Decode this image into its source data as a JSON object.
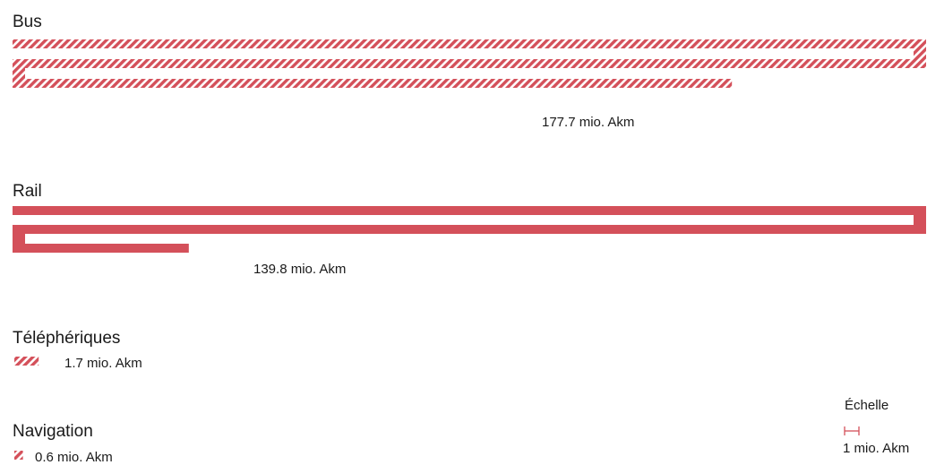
{
  "chart_data": {
    "type": "bar",
    "unit": "mio. Akm",
    "categories": [
      "Bus",
      "Rail",
      "Téléphériques",
      "Navigation"
    ],
    "values": [
      177.7,
      139.8,
      1.7,
      0.6
    ],
    "value_labels": [
      "177.7 mio. Akm",
      "139.8 mio. Akm",
      "1.7 mio. Akm",
      "0.6 mio. Akm"
    ],
    "patterns": [
      "hatched",
      "solid",
      "hatched",
      "hatched"
    ],
    "scale": {
      "title": "Échelle",
      "label": "1 mio. Akm",
      "value": 1
    }
  },
  "colors": {
    "bar": "#d4505a",
    "text": "#1a1a1a"
  }
}
